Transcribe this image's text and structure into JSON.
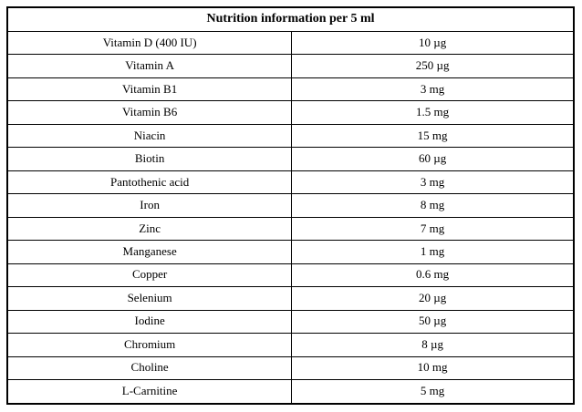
{
  "table": {
    "title": "Nutrition information per 5 ml",
    "rows": [
      {
        "name": "Vitamin D (400 IU)",
        "amount": "10 µg"
      },
      {
        "name": "Vitamin A",
        "amount": "250 µg"
      },
      {
        "name": "Vitamin B1",
        "amount": "3 mg"
      },
      {
        "name": "Vitamin B6",
        "amount": "1.5 mg"
      },
      {
        "name": "Niacin",
        "amount": "15 mg"
      },
      {
        "name": "Biotin",
        "amount": "60 µg"
      },
      {
        "name": "Pantothenic acid",
        "amount": "3 mg"
      },
      {
        "name": "Iron",
        "amount": "8 mg"
      },
      {
        "name": "Zinc",
        "amount": "7 mg"
      },
      {
        "name": "Manganese",
        "amount": "1 mg"
      },
      {
        "name": "Copper",
        "amount": "0.6 mg"
      },
      {
        "name": "Selenium",
        "amount": "20 µg"
      },
      {
        "name": "Iodine",
        "amount": "50 µg"
      },
      {
        "name": "Chromium",
        "amount": "8 µg"
      },
      {
        "name": "Choline",
        "amount": "10 mg"
      },
      {
        "name": "L-Carnitine",
        "amount": "5 mg"
      }
    ],
    "border_color": "#000000",
    "background_color": "#ffffff"
  }
}
